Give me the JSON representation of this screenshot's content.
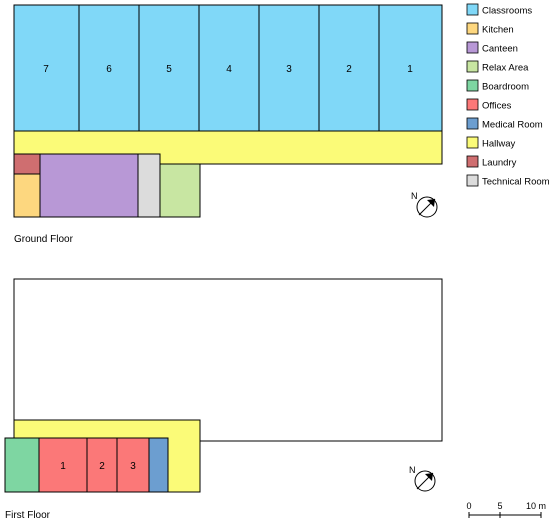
{
  "floors": {
    "ground": {
      "label": "Ground Floor",
      "classroom_numbers": [
        "7",
        "6",
        "5",
        "4",
        "3",
        "2",
        "1"
      ]
    },
    "first": {
      "label": "First Floor",
      "office_numbers": [
        "1",
        "2",
        "3"
      ]
    }
  },
  "north_label": "N",
  "scale_bar": {
    "ticks": [
      "0",
      "5",
      "10 m"
    ]
  },
  "legend": [
    {
      "label": "Classrooms",
      "color": "#80d8f8"
    },
    {
      "label": "Kitchen",
      "color": "#fdd77f"
    },
    {
      "label": "Canteen",
      "color": "#b898d6"
    },
    {
      "label": "Relax Area",
      "color": "#c8e6a2"
    },
    {
      "label": "Boardroom",
      "color": "#7ed6a2"
    },
    {
      "label": "Offices",
      "color": "#fb7878"
    },
    {
      "label": "Medical Room",
      "color": "#6c9ed0"
    },
    {
      "label": "Hallway",
      "color": "#fbfb78"
    },
    {
      "label": "Laundry",
      "color": "#cf6e70"
    },
    {
      "label": "Technical Room",
      "color": "#dcdcdc"
    }
  ]
}
